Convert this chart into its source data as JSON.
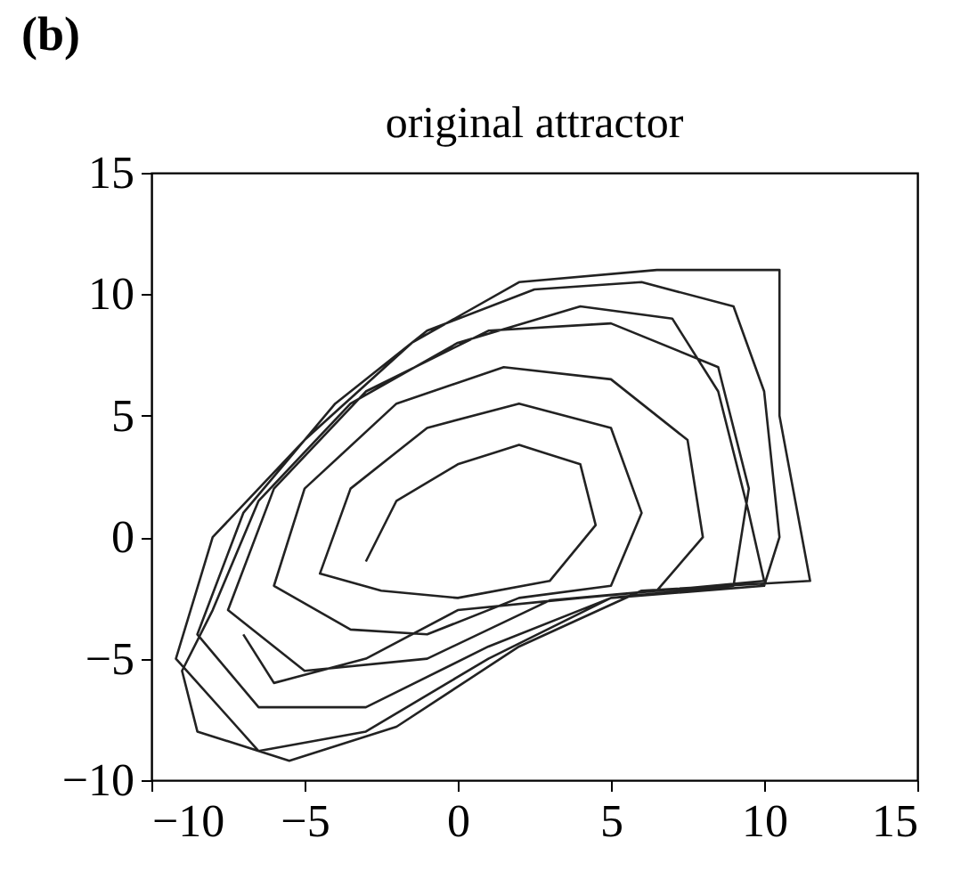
{
  "chart_data": {
    "type": "line",
    "title": "original attractor",
    "annotations": [
      "(b)"
    ],
    "x": [
      -3,
      -2,
      0,
      2,
      4,
      4.5,
      3,
      0,
      -2.5,
      -4.5,
      -3.5,
      -1,
      2,
      5,
      6,
      5,
      2,
      -1,
      -3.5,
      -6,
      -5,
      -2,
      1.5,
      5,
      7.5,
      8,
      6.5,
      3,
      -1,
      -5,
      -7.5,
      -6,
      -3,
      1,
      5,
      8.5,
      9.5,
      9,
      5,
      1,
      -3,
      -6.5,
      -8.5,
      -7,
      -4,
      -1,
      2.5,
      6,
      9,
      10,
      10.5,
      10,
      5,
      1,
      -3,
      -6.5,
      -9.2,
      -8,
      -5,
      -1.5,
      2,
      6.5,
      10.5,
      10.5,
      11.5,
      6,
      2,
      -2,
      -5.5,
      -8.5,
      -9,
      -8,
      -6.5,
      -3.5,
      0,
      4,
      7,
      8.5,
      9.5,
      10,
      4,
      0,
      -3,
      -6,
      -7
    ],
    "values": [
      -1,
      1.5,
      3,
      3.8,
      3,
      0.5,
      -1.8,
      -2.5,
      -2.2,
      -1.5,
      2,
      4.5,
      5.5,
      4.5,
      1,
      -2,
      -2.5,
      -4,
      -3.8,
      -2,
      2,
      5.5,
      7,
      6.5,
      4,
      0,
      -2.2,
      -2.6,
      -5,
      -5.5,
      -3,
      2,
      6,
      8.5,
      8.8,
      7,
      2,
      -2,
      -2.5,
      -4.5,
      -7,
      -7,
      -4,
      1,
      5.5,
      8.5,
      10.2,
      10.5,
      9.5,
      6,
      0,
      -2,
      -2.5,
      -5,
      -8,
      -8.8,
      -5,
      0,
      4,
      8,
      10.5,
      11,
      11,
      5,
      -1.8,
      -2.2,
      -4.5,
      -7.8,
      -9.2,
      -8,
      -5.5,
      -3,
      1.5,
      5.5,
      8,
      9.5,
      9,
      6,
      1,
      -1.8,
      -2.5,
      -3,
      -5,
      -6,
      -4
    ],
    "color": "#222222",
    "xlim": [
      -10,
      15
    ],
    "ylim": [
      -10,
      15
    ],
    "xticks": [
      -10,
      -5,
      0,
      5,
      10,
      15
    ],
    "yticks": [
      -10,
      -5,
      0,
      5,
      10,
      15
    ],
    "grid": false
  }
}
